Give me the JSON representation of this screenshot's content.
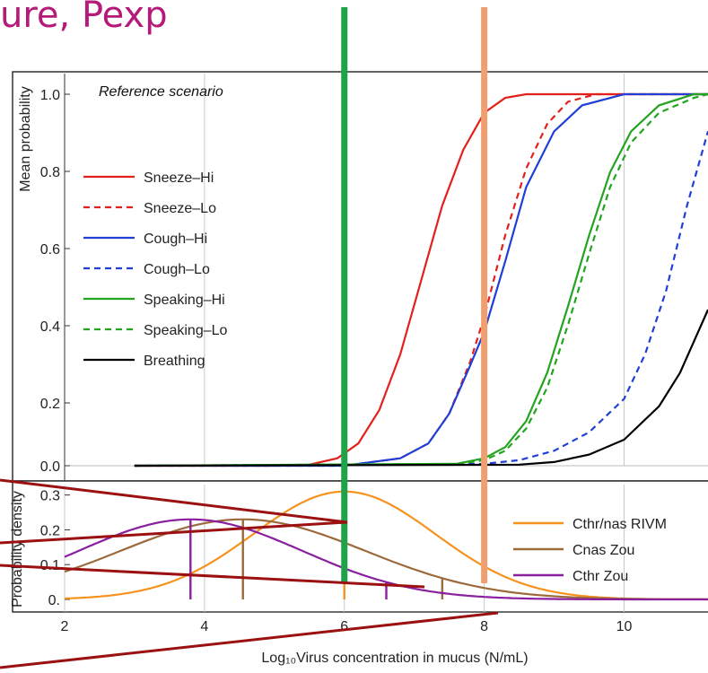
{
  "slide_title": "ure, Pexp",
  "colors": {
    "title": "#b5197a",
    "marker_green": "#1fa24a",
    "marker_orange": "#f0a070",
    "dark_red": "#9b1111"
  },
  "chart_data": [
    {
      "type": "line",
      "title": "Reference scenario",
      "xlabel": "",
      "ylabel": "Mean probability",
      "xlim": [
        2,
        11.2
      ],
      "ylim": [
        0,
        1.0
      ],
      "yticks": [
        {
          "value": 0.0,
          "label": "0.0"
        },
        {
          "value": 0.2,
          "label": "0.2"
        },
        {
          "value": 0.4,
          "label": "0.4"
        },
        {
          "value": 0.6,
          "label": "0.6"
        },
        {
          "value": 0.8,
          "label": "0.8"
        },
        {
          "value": 1.0,
          "label": "1.0"
        }
      ],
      "x_gridlines": [
        4,
        6,
        8,
        10
      ],
      "legend_position": "left",
      "series": [
        {
          "name": "Sneeze–Hi",
          "color": "#e3201b",
          "dash": "solid",
          "x": [
            3,
            5,
            5.5,
            5.9,
            6.2,
            6.5,
            6.8,
            7.1,
            7.4,
            7.7,
            8.0,
            8.3,
            8.6,
            9.0,
            11.2
          ],
          "y": [
            0,
            0,
            0.003,
            0.02,
            0.06,
            0.15,
            0.3,
            0.5,
            0.7,
            0.85,
            0.95,
            0.99,
            1.0,
            1.0,
            1.0
          ]
        },
        {
          "name": "Sneeze–Lo",
          "color": "#e3201b",
          "dash": "dashed",
          "x": [
            3,
            6,
            6.8,
            7.2,
            7.5,
            7.8,
            8.0,
            8.3,
            8.6,
            8.9,
            9.2,
            9.6,
            11.2
          ],
          "y": [
            0,
            0,
            0.02,
            0.06,
            0.14,
            0.28,
            0.4,
            0.62,
            0.8,
            0.92,
            0.98,
            1.0,
            1.0
          ]
        },
        {
          "name": "Cough–Hi",
          "color": "#1f3fd6",
          "dash": "solid",
          "x": [
            3,
            6,
            6.8,
            7.2,
            7.5,
            7.8,
            8.0,
            8.3,
            8.6,
            9.0,
            9.4,
            10.0,
            11.2
          ],
          "y": [
            0,
            0,
            0.02,
            0.06,
            0.14,
            0.27,
            0.36,
            0.55,
            0.75,
            0.9,
            0.97,
            1.0,
            1.0
          ]
        },
        {
          "name": "Cough–Lo",
          "color": "#1f3fd6",
          "dash": "dashed",
          "x": [
            3,
            8.0,
            8.5,
            9.0,
            9.5,
            10.0,
            10.3,
            10.6,
            10.9,
            11.2
          ],
          "y": [
            0,
            0.005,
            0.015,
            0.04,
            0.09,
            0.18,
            0.3,
            0.47,
            0.7,
            0.9
          ]
        },
        {
          "name": "Speaking–Hi",
          "color": "#23a41f",
          "dash": "solid",
          "x": [
            3,
            7.6,
            8.0,
            8.3,
            8.6,
            8.9,
            9.2,
            9.5,
            9.8,
            10.1,
            10.5,
            11.0,
            11.2
          ],
          "y": [
            0,
            0.005,
            0.02,
            0.05,
            0.12,
            0.25,
            0.43,
            0.62,
            0.79,
            0.9,
            0.97,
            1.0,
            1.0
          ]
        },
        {
          "name": "Speaking–Lo",
          "color": "#23a41f",
          "dash": "dashed",
          "x": [
            3,
            7.6,
            8.0,
            8.3,
            8.6,
            8.9,
            9.2,
            9.5,
            9.8,
            10.1,
            10.5,
            11.0,
            11.2
          ],
          "y": [
            0,
            0.004,
            0.015,
            0.04,
            0.1,
            0.21,
            0.38,
            0.57,
            0.75,
            0.87,
            0.95,
            0.99,
            1.0
          ]
        },
        {
          "name": "Breathing",
          "color": "#000000",
          "dash": "solid",
          "x": [
            3,
            8.5,
            9.0,
            9.5,
            10.0,
            10.5,
            10.8,
            11.2
          ],
          "y": [
            0,
            0.003,
            0.01,
            0.03,
            0.07,
            0.16,
            0.25,
            0.42
          ]
        }
      ]
    },
    {
      "type": "line",
      "title": "",
      "xlabel": "Log₁₀Virus concentration in mucus (N/mL)",
      "ylabel": "Probability density",
      "xlim": [
        2,
        11.2
      ],
      "ylim": [
        0,
        0.33
      ],
      "xticks": [
        {
          "value": 2,
          "label": "2"
        },
        {
          "value": 4,
          "label": "4"
        },
        {
          "value": 6,
          "label": "6"
        },
        {
          "value": 8,
          "label": "8"
        },
        {
          "value": 10,
          "label": "10"
        }
      ],
      "yticks": [
        {
          "value": 0.0,
          "label": "0."
        },
        {
          "value": 0.1,
          "label": "0.1"
        },
        {
          "value": 0.2,
          "label": "0.2"
        },
        {
          "value": 0.3,
          "label": "0.3"
        }
      ],
      "legend_position": "right",
      "series": [
        {
          "name": "Cthr/nas RIVM",
          "color": "#f5931e",
          "mean": 6.0,
          "sd": 1.3,
          "peak": 0.31,
          "markers": [
            6.0
          ]
        },
        {
          "name": "Cnas Zou",
          "color": "#9c6a3c",
          "mean": 4.55,
          "sd": 1.75,
          "peak": 0.23,
          "markers": [
            4.55,
            7.4
          ]
        },
        {
          "name": "Cthr Zou",
          "color": "#8a1fa0",
          "mean": 3.8,
          "sd": 1.6,
          "peak": 0.23,
          "markers": [
            3.8,
            6.6
          ]
        }
      ]
    }
  ]
}
